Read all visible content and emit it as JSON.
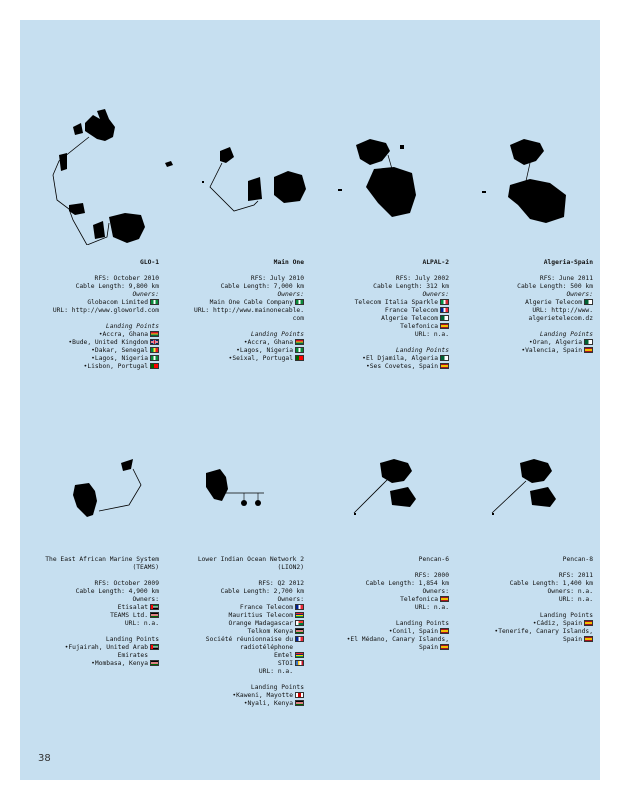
{
  "page_number": "38",
  "cables": [
    {
      "title": "GLO-1",
      "rfs": "RFS: October 2010",
      "length": "Cable Length: 9,800 km",
      "owners_label": "Owners:",
      "owners": [
        {
          "text": "Globacom Limited",
          "flag": "nigeria-flag"
        }
      ],
      "url_lines": [
        "URL: http://www.gloworld.com"
      ],
      "landing_label": "Landing Points",
      "landing": [
        {
          "text": "•Accra, Ghana",
          "flag": "ghana-flag"
        },
        {
          "text": "•Bude, United Kingdom",
          "flag": "uk-flag"
        },
        {
          "text": "•Dakar, Senegal",
          "flag": "senegal-flag"
        },
        {
          "text": "•Lagos, Nigeria",
          "flag": "nigeria-flag"
        },
        {
          "text": "•Lisbon, Portugal",
          "flag": "portugal-flag"
        }
      ]
    },
    {
      "title": "Main One",
      "rfs": "RFS: July 2010",
      "length": "Cable Length: 7,000 km",
      "owners_label": "Owners:",
      "owners": [
        {
          "text": "Main One Cable Company",
          "flag": "nigeria-flag"
        }
      ],
      "url_lines": [
        "URL: http://www.mainonecable.",
        "com"
      ],
      "landing_label": "Landing Points",
      "landing": [
        {
          "text": "•Accra, Ghana",
          "flag": "ghana-flag"
        },
        {
          "text": "•Lagos, Nigeria",
          "flag": "nigeria-flag"
        },
        {
          "text": "•Seixal, Portugal",
          "flag": "portugal-flag"
        }
      ]
    },
    {
      "title": "ALPAL-2",
      "rfs": "RFS: July 2002",
      "length": "Cable Length: 312 km",
      "owners_label": "Owners:",
      "owners": [
        {
          "text": "Telecom Italia Sparkle",
          "flag": "italy-flag"
        },
        {
          "text": "France Telecom",
          "flag": "france-flag"
        },
        {
          "text": "Algerie Telecom",
          "flag": "algeria-flag"
        },
        {
          "text": "Telefonica",
          "flag": "spain-flag"
        }
      ],
      "url_lines": [
        "URL: n.a."
      ],
      "landing_label": "Landing Points",
      "landing": [
        {
          "text": "•El Djamila, Algeria",
          "flag": "algeria-flag"
        },
        {
          "text": "•Ses Covetes, Spain",
          "flag": "spain-flag"
        }
      ]
    },
    {
      "title": "Algeria-Spain",
      "rfs": "RFS: June 2011",
      "length": "Cable Length: 500 km",
      "owners_label": "Owners:",
      "owners": [
        {
          "text": "Algerie Telecom",
          "flag": "algeria-flag"
        }
      ],
      "url_lines": [
        "URL: http://www.",
        "algerietelecom.dz"
      ],
      "landing_label": "Landing Points",
      "landing": [
        {
          "text": "•Oran, Algeria",
          "flag": "algeria-flag"
        },
        {
          "text": "•Valencia, Spain",
          "flag": "spain-flag"
        }
      ]
    },
    {
      "title_lines": [
        "The East African Marine System",
        "(TEAMS)"
      ],
      "rfs": "RFS: October 2009",
      "length": "Cable Length: 4,900 km",
      "owners_label": "Owners:",
      "owners": [
        {
          "text": "Etisalat",
          "flag": "uae-flag"
        },
        {
          "text": "TEAMS Ltd.",
          "flag": "kenya-flag"
        }
      ],
      "url_lines": [
        "URL: n.a."
      ],
      "landing_label": "Landing Points",
      "landing": [
        {
          "text": "•Fujairah, United Arab",
          "flag": "uae-flag"
        },
        {
          "text": "Emirates",
          "flag": ""
        },
        {
          "text": "•Mombasa, Kenya",
          "flag": "kenya-flag"
        }
      ]
    },
    {
      "title_lines": [
        "Lower Indian Ocean Network 2",
        "(LION2)"
      ],
      "rfs": "RFS: Q2 2012",
      "length": "Cable Length: 2,700 km",
      "owners_label": "Owners:",
      "owners": [
        {
          "text": "France Telecom",
          "flag": "france-flag"
        },
        {
          "text": "Mauritius Telecom",
          "flag": "mauritius-flag"
        },
        {
          "text": "Orange Madagascar",
          "flag": "madagascar-flag"
        },
        {
          "text": "Telkom Kenya",
          "flag": "kenya-flag"
        },
        {
          "text": "Société réunionnaise du",
          "flag": "reunion-flag"
        },
        {
          "text": "radiotéléphone",
          "flag": ""
        },
        {
          "text": "Emtel",
          "flag": "mauritius-flag"
        },
        {
          "text": "STOI",
          "flag": "comoros-flag"
        }
      ],
      "url_lines": [
        "URL: n.a."
      ],
      "landing_label": "Landing Points",
      "landing": [
        {
          "text": "•Kaweni, Mayotte",
          "flag": "mayotte-flag"
        },
        {
          "text": "•Nyali, Kenya",
          "flag": "kenya-flag"
        }
      ]
    },
    {
      "title": "Pencan-6",
      "rfs": "RFS: 2000",
      "length": "Cable Length: 1,854 km",
      "owners_label": "Owners:",
      "owners": [
        {
          "text": "Telefonica",
          "flag": "spain-flag"
        }
      ],
      "url_lines": [
        "URL: n.a."
      ],
      "landing_label": "Landing Points",
      "landing": [
        {
          "text": "•Conil, Spain",
          "flag": "spain-flag"
        },
        {
          "text": "•El Médano, Canary Islands,",
          "flag": ""
        },
        {
          "text": "Spain",
          "flag": "spain-flag"
        }
      ]
    },
    {
      "title": "Pencan-8",
      "rfs": "RFS: 2011",
      "length": "Cable Length: 1,400 km",
      "owners_label": "Owners: n.a.",
      "owners": [],
      "url_lines": [
        "URL: n.a."
      ],
      "landing_label": "Landing Points",
      "landing": [
        {
          "text": "•Cádiz, Spain",
          "flag": "spain-flag"
        },
        {
          "text": "•Tenerife, Canary Islands,",
          "flag": ""
        },
        {
          "text": "Spain",
          "flag": "spain-flag"
        }
      ]
    }
  ]
}
